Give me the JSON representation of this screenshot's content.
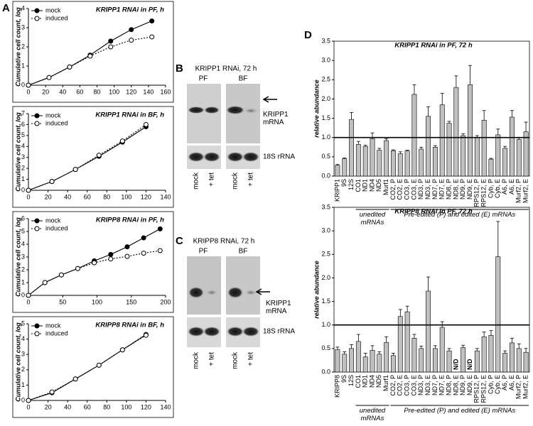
{
  "panel_labels": [
    "A",
    "B",
    "C",
    "D"
  ],
  "blots": [
    {
      "title": "KRIPP1 RNAi, 72 h",
      "lanes": [
        "PF",
        "BF"
      ],
      "band": "KRIPP1 mRNA",
      "control": "18S rRNA",
      "samples": [
        "mock",
        "+ tet"
      ]
    },
    {
      "title": "KRIPP8 RNAi, 72 h",
      "lanes": [
        "PF",
        "BF"
      ],
      "band": "KRIPP1 mRNA",
      "control": "18S rRNA",
      "samples": [
        "mock",
        "+ tet"
      ]
    }
  ],
  "chart_data": [
    {
      "type": "line",
      "title": "KRIPP1 RNAi in PF, h",
      "ylabel": "Cumulative cell count, log",
      "x": [
        0,
        24,
        48,
        72,
        96,
        120,
        144
      ],
      "series": [
        {
          "name": "mock",
          "color": "#000000",
          "marker_fill": "#000000",
          "line_style": "solid",
          "values": [
            0,
            0.4,
            0.95,
            1.57,
            2.3,
            2.9,
            3.35
          ]
        },
        {
          "name": "induced",
          "color": "#000000",
          "marker_fill": "#ffffff",
          "line_style": "dotted",
          "values": [
            0,
            0.4,
            0.95,
            1.52,
            2.0,
            2.35,
            2.52
          ]
        }
      ],
      "xlim": [
        0,
        160
      ],
      "xticks": [
        0,
        20,
        40,
        60,
        80,
        100,
        120,
        140,
        160
      ],
      "ylim": [
        0,
        4
      ],
      "yticks": [
        0,
        1,
        2,
        3,
        4
      ]
    },
    {
      "type": "line",
      "title": "KRIPP1 RNAi in BF, h",
      "ylabel": "Cumulative cell count, log",
      "x": [
        0,
        24,
        48,
        72,
        96,
        120
      ],
      "series": [
        {
          "name": "mock",
          "color": "#000000",
          "marker_fill": "#000000",
          "line_style": "solid",
          "values": [
            0,
            0.8,
            1.9,
            3.1,
            4.4,
            5.8
          ]
        },
        {
          "name": "induced",
          "color": "#000000",
          "marker_fill": "#ffffff",
          "line_style": "dotted",
          "values": [
            0,
            0.8,
            1.9,
            3.2,
            4.5,
            6.0
          ]
        }
      ],
      "xlim": [
        0,
        140
      ],
      "xticks": [
        0,
        20,
        40,
        60,
        80,
        100,
        120,
        140
      ],
      "ylim": [
        0,
        7
      ],
      "yticks": [
        0,
        1,
        2,
        3,
        4,
        5,
        6,
        7
      ]
    },
    {
      "type": "line",
      "title": "KRIPP8 RNAi in PF, h",
      "ylabel": "Cumulative cell count, log",
      "x": [
        0,
        24,
        48,
        72,
        96,
        120,
        144,
        168,
        192
      ],
      "series": [
        {
          "name": "mock",
          "color": "#000000",
          "marker_fill": "#000000",
          "line_style": "solid",
          "values": [
            0,
            1.0,
            1.6,
            2.1,
            2.7,
            3.2,
            3.8,
            4.5,
            5.2
          ]
        },
        {
          "name": "induced",
          "color": "#000000",
          "marker_fill": "#ffffff",
          "line_style": "dotted",
          "values": [
            0,
            1.0,
            1.6,
            2.1,
            2.55,
            2.85,
            3.05,
            3.3,
            3.5
          ]
        }
      ],
      "xlim": [
        0,
        200
      ],
      "xticks": [
        0,
        50,
        100,
        150,
        200
      ],
      "ylim": [
        0,
        6
      ],
      "yticks": [
        0,
        1,
        2,
        3,
        4,
        5,
        6
      ]
    },
    {
      "type": "line",
      "title": "KRIPP8 RNAi in BF, h",
      "ylabel": "Cumulative cell count, log",
      "x": [
        0,
        24,
        48,
        72,
        96,
        120
      ],
      "series": [
        {
          "name": "mock",
          "color": "#000000",
          "marker_fill": "#000000",
          "line_style": "solid",
          "values": [
            0,
            0.5,
            1.4,
            2.3,
            3.3,
            4.3
          ]
        },
        {
          "name": "induced",
          "color": "#000000",
          "marker_fill": "#ffffff",
          "line_style": "dotted",
          "values": [
            0,
            0.55,
            1.4,
            2.3,
            3.3,
            4.25
          ]
        }
      ],
      "xlim": [
        0,
        140
      ],
      "xticks": [
        0,
        20,
        40,
        60,
        80,
        100,
        120,
        140
      ],
      "ylim": [
        0,
        5
      ],
      "yticks": [
        0,
        1,
        2,
        3,
        4,
        5
      ]
    },
    {
      "type": "bar",
      "title": "KRIPP1 RNAi in PF, 72 h",
      "ylabel": "relative abundance",
      "color": "#c0c0c0",
      "categories": [
        "KRIPP1",
        "9S",
        "12S",
        "CO1",
        "ND1",
        "ND4",
        "ND5",
        "Murf1",
        "CO2, P",
        "CO2, E",
        "CO3, P",
        "CO3, E",
        "ND3, P",
        "ND3, E",
        "ND7, P",
        "ND7, E",
        "ND8, P",
        "ND8, E",
        "ND9, P",
        "ND9, E",
        "RPS12, P",
        "RPS12, E",
        "Cyb, P",
        "Cyb, E",
        "A6, P",
        "A6, E",
        "Murf2, P",
        "Murf2, E"
      ],
      "values": [
        0.28,
        0.45,
        1.47,
        0.82,
        0.77,
        0.97,
        0.67,
        0.92,
        0.66,
        0.58,
        0.65,
        2.12,
        0.7,
        1.55,
        0.75,
        1.85,
        1.37,
        2.3,
        1.05,
        2.37,
        1.0,
        1.45,
        0.44,
        1.07,
        0.72,
        1.53,
        0.95,
        1.15
      ],
      "errors": [
        0.02,
        0.02,
        0.18,
        0.08,
        0.03,
        0.15,
        0.05,
        0.05,
        0.02,
        0.05,
        0.02,
        0.25,
        0.05,
        0.25,
        0.04,
        0.3,
        0.05,
        0.3,
        0.05,
        0.5,
        0.05,
        0.25,
        0.02,
        0.15,
        0.05,
        0.17,
        0.04,
        0.25
      ],
      "groups": [
        "unedited mRNAs",
        "Pre-edited (P) and edited (E) mRNAs"
      ],
      "reference_line": 1,
      "ylim": [
        0,
        3.5
      ],
      "yticks": [
        {
          "value": 0,
          "label": "0.0"
        },
        0.5,
        {
          "value": 1,
          "label": "1.0"
        },
        1.5,
        {
          "value": 2,
          "label": "2.0"
        },
        2.5,
        {
          "value": 3,
          "label": "3.0"
        },
        3.5
      ]
    },
    {
      "type": "bar",
      "title": "KRIPP8 RNAi in PF, 72 h",
      "ylabel": "relative abundance",
      "color": "#c0c0c0",
      "categories": [
        "KRIPP8",
        "9S",
        "12S",
        "CO1",
        "ND1",
        "ND4",
        "ND5",
        "Murf1",
        "CO2, P",
        "CO2, E",
        "CO3, P",
        "CO3, E",
        "ND3, P",
        "ND3, E",
        "ND7, P",
        "ND7, E",
        "ND8, P",
        "ND8, E",
        "ND9, P",
        "ND9, E",
        "RPS12, P",
        "RPS12, E",
        "Cyb, P",
        "Cyb, E",
        "A6, P",
        "A6, E",
        "Murf2, P",
        "Murf2, E"
      ],
      "values": [
        0.48,
        0.38,
        0.5,
        0.65,
        0.32,
        0.46,
        0.38,
        0.63,
        0.35,
        1.18,
        1.28,
        0.72,
        0.5,
        1.72,
        0.5,
        0.95,
        0.45,
        null,
        0.52,
        null,
        0.45,
        0.75,
        0.78,
        2.45,
        0.4,
        0.62,
        0.5,
        0.42
      ],
      "value_labels": [
        null,
        null,
        null,
        null,
        null,
        null,
        null,
        null,
        null,
        null,
        null,
        null,
        null,
        null,
        null,
        null,
        null,
        "N/D",
        null,
        "N/D",
        null,
        null,
        null,
        null,
        null,
        null,
        null,
        null
      ],
      "errors": [
        0.05,
        0.05,
        0.08,
        0.15,
        0.08,
        0.1,
        0.05,
        0.12,
        0.05,
        0.15,
        0.12,
        0.08,
        0.05,
        0.3,
        0.06,
        0.12,
        0.05,
        null,
        0.05,
        null,
        0.05,
        0.1,
        0.1,
        0.75,
        0.05,
        0.1,
        0.1,
        0.08
      ],
      "groups": [
        "unedited mRNAs",
        "Pre-edited (P) and edited (E) mRNAs"
      ],
      "reference_line": 1,
      "ylim": [
        0,
        3.5
      ],
      "yticks": [
        {
          "value": 0,
          "label": "0.0"
        },
        0.5,
        {
          "value": 1,
          "label": "1.0"
        },
        1.5,
        {
          "value": 2,
          "label": "2.0"
        },
        2.5,
        {
          "value": 3,
          "label": "3.0"
        },
        3.5
      ]
    }
  ]
}
